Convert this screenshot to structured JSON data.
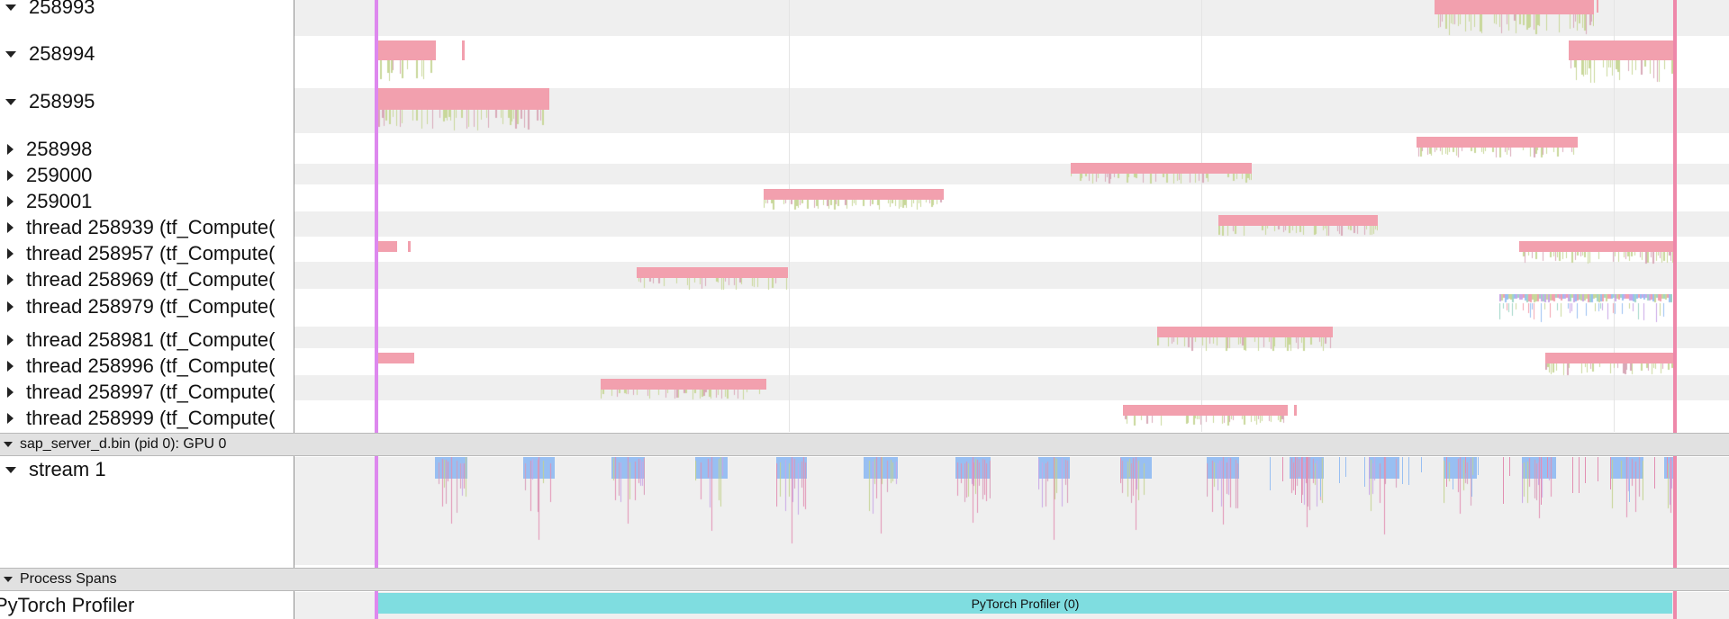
{
  "tracks": [
    {
      "label": "258993",
      "expanded": true
    },
    {
      "label": "258994",
      "expanded": true
    },
    {
      "label": "258995",
      "expanded": true
    },
    {
      "label": "258998",
      "expanded": false
    },
    {
      "label": "259000",
      "expanded": false
    },
    {
      "label": "259001",
      "expanded": false
    },
    {
      "label": "thread 258939 (tf_Compute(",
      "expanded": false
    },
    {
      "label": "thread 258957 (tf_Compute(",
      "expanded": false
    },
    {
      "label": "thread 258969 (tf_Compute(",
      "expanded": false
    },
    {
      "label": "thread 258979 (tf_Compute(",
      "expanded": false
    },
    {
      "label": "thread 258981 (tf_Compute(",
      "expanded": false
    },
    {
      "label": "thread 258996 (tf_Compute(",
      "expanded": false
    },
    {
      "label": "thread 258997 (tf_Compute(",
      "expanded": false
    },
    {
      "label": "thread 258999 (tf_Compute(",
      "expanded": false
    }
  ],
  "gpu_process": {
    "label": "sap_server_d.bin (pid 0): GPU 0",
    "expanded": true
  },
  "stream": {
    "label": "stream 1",
    "expanded": true
  },
  "process_spans": {
    "label": "Process Spans",
    "expanded": true
  },
  "profiler_row": {
    "label": "PyTorch Profiler",
    "bar_label": "PyTorch Profiler (0)"
  },
  "colors": {
    "cpu_slice": "#f2a0ae",
    "cpu_sub": "#c8d79a",
    "gpu_kernel_a": "#98bff2",
    "gpu_kernel_b": "#e28fb2",
    "gpu_kernel_c": "#c3d28f",
    "profiler_span": "#7fdde0",
    "left_marker": "#dd88ee",
    "right_marker": "#ee88aa",
    "row_alt": "#efefef",
    "header_bg": "#e1e1e1"
  }
}
